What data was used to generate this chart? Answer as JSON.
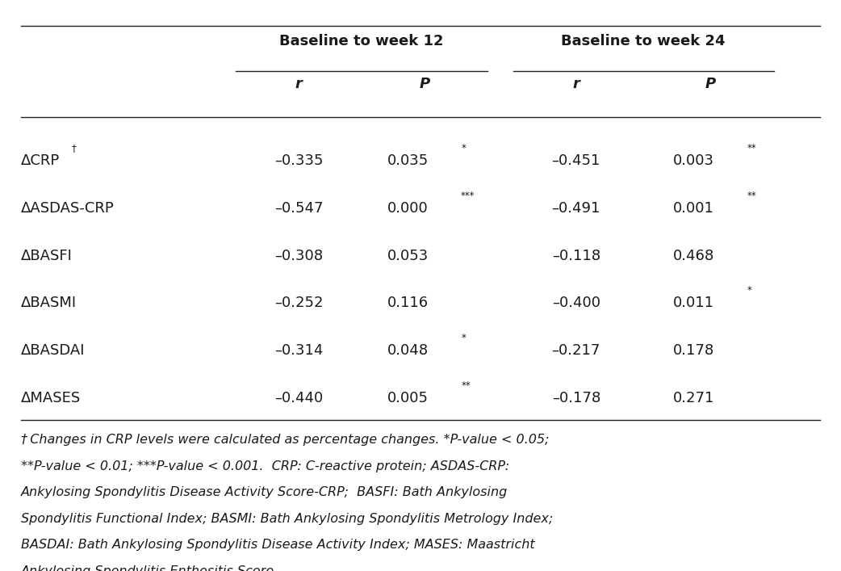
{
  "header_group1": "Baseline to week 12",
  "header_group2": "Baseline to week 24",
  "col_headers": [
    "r",
    "P",
    "r",
    "P"
  ],
  "rows": [
    {
      "label_main": "ΔCRP",
      "label_sup": "†",
      "vals": [
        "–0.335",
        "0.035",
        "*",
        "–0.451",
        "0.003",
        "**"
      ]
    },
    {
      "label_main": "ΔASDAS-CRP",
      "label_sup": "",
      "vals": [
        "–0.547",
        "0.000",
        "***",
        "–0.491",
        "0.001",
        "**"
      ]
    },
    {
      "label_main": "ΔBASFI",
      "label_sup": "",
      "vals": [
        "–0.308",
        "0.053",
        "",
        "–0.118",
        "0.468",
        ""
      ]
    },
    {
      "label_main": "ΔBASMI",
      "label_sup": "",
      "vals": [
        "–0.252",
        "0.116",
        "",
        "–0.400",
        "0.011",
        "*"
      ]
    },
    {
      "label_main": "ΔBASDAI",
      "label_sup": "",
      "vals": [
        "–0.314",
        "0.048",
        "*",
        "–0.217",
        "0.178",
        ""
      ]
    },
    {
      "label_main": "ΔMASES",
      "label_sup": "",
      "vals": [
        "–0.440",
        "0.005",
        "**",
        "–0.178",
        "0.271",
        ""
      ]
    }
  ],
  "footnote_lines": [
    "† Changes in CRP levels were calculated as percentage changes. *P-value < 0.05;",
    "**P-value < 0.01; ***P-value < 0.001.  CRP: C-reactive protein; ASDAS-CRP:",
    "Ankylosing Spondylitis Disease Activity Score-CRP;  BASFI: Bath Ankylosing",
    "Spondylitis Functional Index; BASMI: Bath Ankylosing Spondylitis Metrology Index;",
    "BASDAI: Bath Ankylosing Spondylitis Disease Activity Index; MASES: Maastricht",
    "Ankylosing Spondylitis Enthesitis Score."
  ],
  "background_color": "#ffffff",
  "text_color": "#1a1a1a",
  "line_color": "#222222"
}
